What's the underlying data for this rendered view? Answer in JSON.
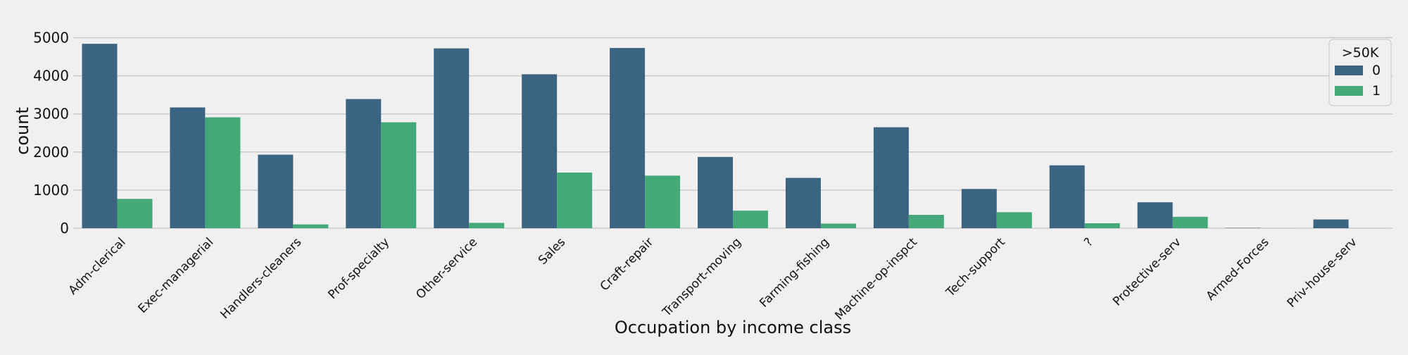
{
  "chart_data": {
    "type": "bar",
    "title": "",
    "xlabel": "Occupation by income class",
    "ylabel": "count",
    "ylim": [
      0,
      5250
    ],
    "yticks": [
      0,
      1000,
      2000,
      3000,
      4000,
      5000
    ],
    "grid": "horizontal",
    "legend": {
      "title": ">50K",
      "placement": "top-right"
    },
    "categories": [
      "Adm-clerical",
      "Exec-managerial",
      "Handlers-cleaners",
      "Prof-specialty",
      "Other-service",
      "Sales",
      "Craft-repair",
      "Transport-moving",
      "Farming-fishing",
      "Machine-op-inspct",
      "Tech-support",
      "?",
      "Protective-serv",
      "Armed-Forces",
      "Priv-house-serv"
    ],
    "series": [
      {
        "name": "0",
        "color": "#3b6482",
        "values": [
          4840,
          3170,
          1930,
          3390,
          4720,
          4040,
          4730,
          1870,
          1320,
          2650,
          1030,
          1650,
          680,
          8,
          230
        ]
      },
      {
        "name": "1",
        "color": "#45a878",
        "values": [
          770,
          2910,
          100,
          2780,
          140,
          1460,
          1380,
          460,
          120,
          350,
          420,
          130,
          300,
          1,
          1
        ]
      }
    ]
  }
}
